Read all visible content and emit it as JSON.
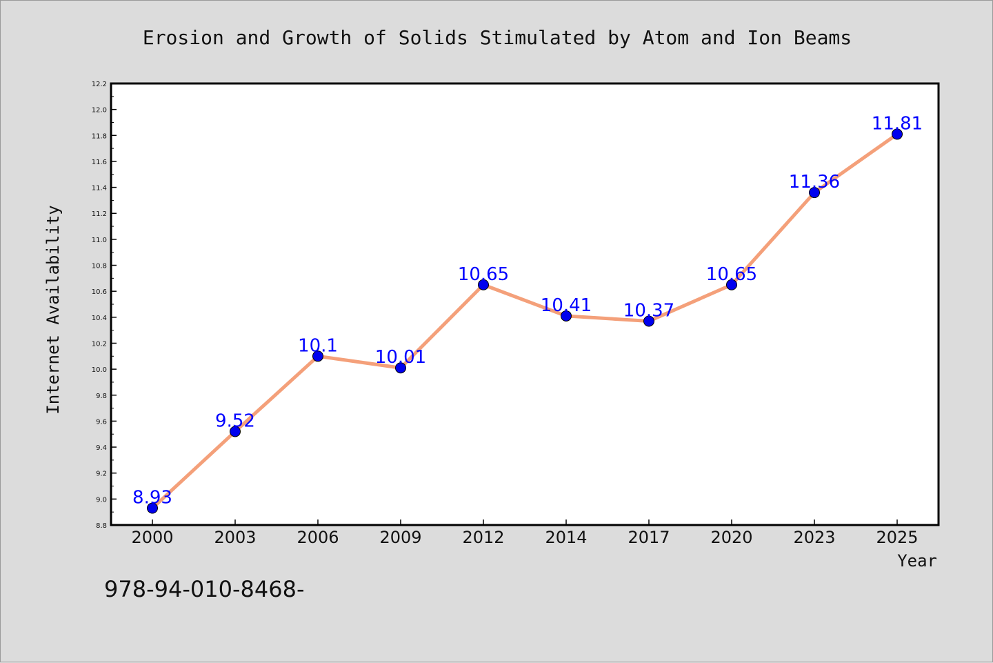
{
  "chart_data": {
    "type": "line",
    "title": "Erosion and Growth of Solids Stimulated by Atom and Ion Beams",
    "xlabel": "Year",
    "ylabel": "Internet Availability",
    "categories": [
      "2000",
      "2003",
      "2006",
      "2009",
      "2012",
      "2014",
      "2017",
      "2020",
      "2023",
      "2025"
    ],
    "series": [
      {
        "values": [
          8.93,
          9.52,
          10.1,
          10.01,
          10.65,
          10.41,
          10.37,
          10.65,
          11.36,
          11.81
        ],
        "labels": [
          "8.93",
          "9.52",
          "10.1",
          "10.01",
          "10.65",
          "10.41",
          "10.37",
          "10.65",
          "11.36",
          "11.81"
        ],
        "line_color": "#f4a07a",
        "marker_color": "#0000ee"
      }
    ],
    "ylim": [
      8.8,
      12.2
    ],
    "yticks": [
      "8.8",
      "9.0",
      "9.2",
      "9.4",
      "9.6",
      "9.8",
      "10.0",
      "10.2",
      "10.4",
      "10.6",
      "10.8",
      "11.0",
      "11.2",
      "11.4",
      "11.6",
      "11.8",
      "12.0",
      "12.2"
    ],
    "data_label_color": "#0000ff",
    "grid": false,
    "legend": "none"
  },
  "footer": {
    "text": "978-94-010-8468-"
  }
}
